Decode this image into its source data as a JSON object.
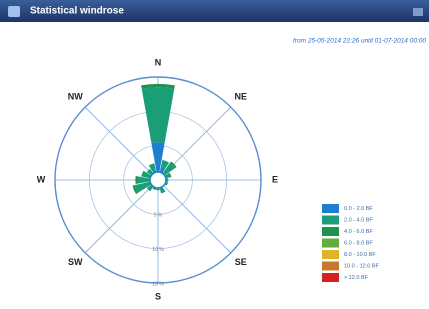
{
  "chart_data": {
    "type": "windrose",
    "title": "Statistical windrose",
    "subtitle": "from 25-05-2014 22:26 until 01-07-2014 00:00",
    "categories": [
      "N",
      null,
      "NE",
      null,
      "E",
      null,
      "SE",
      null,
      "S",
      null,
      "SW",
      null,
      "W",
      null,
      "NW",
      null
    ],
    "rlim": [
      0,
      15
    ],
    "rticks": [
      {
        "value": 5,
        "label": "5 %"
      },
      {
        "value": 10,
        "label": "10 %"
      },
      {
        "value": 15,
        "label": "15 %"
      }
    ],
    "grid": true,
    "legend": "lower right",
    "series": [
      {
        "name": "0.0 - 2.0 BF",
        "color": "#1e7fd2",
        "values": [
          5.5,
          2,
          1,
          0.5,
          0.5,
          0.5,
          0.5,
          0.5,
          0.5,
          0.5,
          1,
          1,
          1,
          1,
          1,
          1.5
        ]
      },
      {
        "name": "2.0 - 4.0 BF",
        "color": "#1a9e78",
        "values": [
          8,
          1,
          2,
          1.5,
          1,
          1,
          0.5,
          1.5,
          1,
          1,
          1,
          2.5,
          2,
          1.5,
          1,
          1
        ]
      },
      {
        "name": "4.0 - 6.0 BF",
        "color": "#1f9150",
        "values": [
          0.5,
          0,
          0.3,
          0,
          0,
          0,
          0,
          0,
          0,
          0,
          0,
          0.3,
          0.3,
          0,
          0,
          0
        ]
      },
      {
        "name": "6.0 - 8.0 BF",
        "color": "#62ad3c",
        "values": [
          0,
          0,
          0,
          0,
          0,
          0,
          0,
          0,
          0,
          0,
          0,
          0,
          0,
          0,
          0,
          0
        ]
      },
      {
        "name": "8.0 - 10.0 BF",
        "color": "#e0b428",
        "values": [
          0,
          0,
          0,
          0,
          0,
          0,
          0,
          0,
          0,
          0,
          0,
          0,
          0,
          0,
          0,
          0
        ]
      },
      {
        "name": "10.0 - 12.0 BF",
        "color": "#c8782c",
        "values": [
          0,
          0,
          0,
          0,
          0,
          0,
          0,
          0,
          0,
          0,
          0,
          0,
          0,
          0,
          0,
          0
        ]
      },
      {
        "name": "> 12.0 BF",
        "color": "#d62020",
        "values": [
          0,
          0,
          0,
          0,
          0,
          0,
          0,
          0,
          0,
          0,
          0,
          0,
          0,
          0,
          0,
          0
        ]
      }
    ]
  }
}
